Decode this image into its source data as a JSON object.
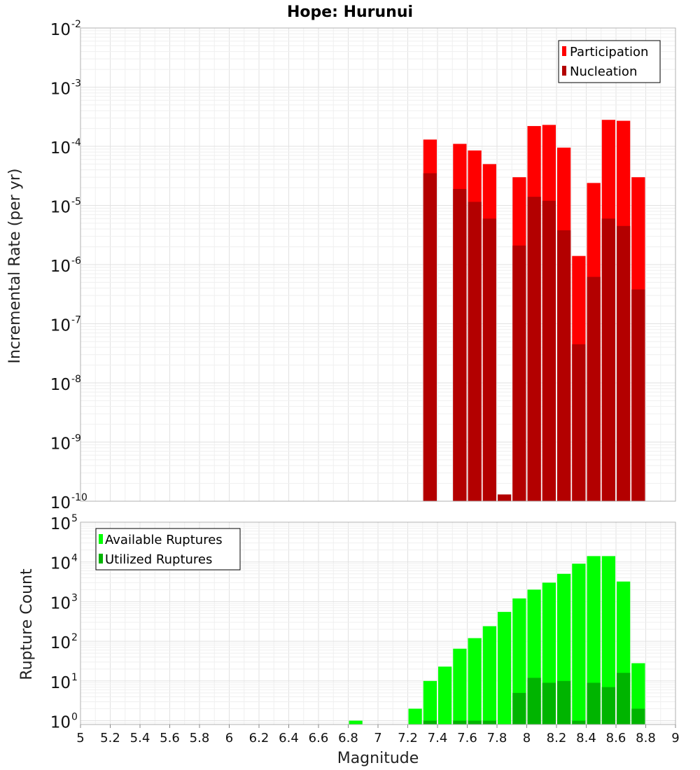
{
  "chart_data": [
    {
      "type": "bar",
      "title": "Hope: Hurunui",
      "xlabel": "",
      "ylabel": "Incremental Rate (per yr)",
      "yscale": "log",
      "ylim": [
        1e-10,
        0.01
      ],
      "xlim": [
        5,
        9
      ],
      "grid": true,
      "legend": "top-right",
      "bar_width": 0.1,
      "y_ticks": [
        {
          "base": "10",
          "exp": "-10",
          "value": 1e-10
        },
        {
          "base": "10",
          "exp": "-9",
          "value": 1e-09
        },
        {
          "base": "10",
          "exp": "-8",
          "value": 1e-08
        },
        {
          "base": "10",
          "exp": "-7",
          "value": 1e-07
        },
        {
          "base": "10",
          "exp": "-6",
          "value": 1e-06
        },
        {
          "base": "10",
          "exp": "-5",
          "value": 1e-05
        },
        {
          "base": "10",
          "exp": "-4",
          "value": 0.0001
        },
        {
          "base": "10",
          "exp": "-3",
          "value": 0.001
        },
        {
          "base": "10",
          "exp": "-2",
          "value": 0.01
        }
      ],
      "series": [
        {
          "name": "Participation",
          "color": "#ff0000",
          "x": [
            7.35,
            7.55,
            7.65,
            7.75,
            7.95,
            8.05,
            8.15,
            8.25,
            8.35,
            8.45,
            8.55,
            8.65,
            8.75
          ],
          "values": [
            0.00013,
            0.00011,
            8.5e-05,
            5e-05,
            3e-05,
            0.00022,
            0.00023,
            9.5e-05,
            1.4e-06,
            2.4e-05,
            0.00028,
            0.00027,
            3e-05
          ]
        },
        {
          "name": "Nucleation",
          "color": "#b30000",
          "x": [
            7.35,
            7.55,
            7.65,
            7.75,
            7.85,
            7.95,
            8.05,
            8.15,
            8.25,
            8.35,
            8.45,
            8.55,
            8.65,
            8.75
          ],
          "values": [
            3.5e-05,
            1.9e-05,
            1.15e-05,
            6e-06,
            1.3e-10,
            2.1e-06,
            1.4e-05,
            1.2e-05,
            3.8e-06,
            4.5e-08,
            6.2e-07,
            6e-06,
            4.5e-06,
            3.8e-07
          ]
        }
      ]
    },
    {
      "type": "bar",
      "title": "",
      "xlabel": "Magnitude",
      "ylabel": "Rupture Count",
      "yscale": "log",
      "ylim": [
        0.8,
        100000
      ],
      "xlim": [
        5,
        9
      ],
      "grid": true,
      "legend": "top-left",
      "bar_width": 0.1,
      "x_ticks": [
        "5",
        "5.2",
        "5.4",
        "5.6",
        "5.8",
        "6",
        "6.2",
        "6.4",
        "6.6",
        "6.8",
        "7",
        "7.2",
        "7.4",
        "7.6",
        "7.8",
        "8",
        "8.2",
        "8.4",
        "8.6",
        "8.8",
        "9"
      ],
      "y_ticks": [
        {
          "base": "10",
          "exp": "0",
          "value": 1
        },
        {
          "base": "10",
          "exp": "1",
          "value": 10
        },
        {
          "base": "10",
          "exp": "2",
          "value": 100
        },
        {
          "base": "10",
          "exp": "3",
          "value": 1000
        },
        {
          "base": "10",
          "exp": "4",
          "value": 10000
        },
        {
          "base": "10",
          "exp": "5",
          "value": 100000
        }
      ],
      "series": [
        {
          "name": "Available Ruptures",
          "color": "#00ff00",
          "x": [
            6.85,
            7.25,
            7.35,
            7.45,
            7.55,
            7.65,
            7.75,
            7.85,
            7.95,
            8.05,
            8.15,
            8.25,
            8.35,
            8.45,
            8.55,
            8.65,
            8.75
          ],
          "values": [
            1,
            2,
            10,
            23,
            65,
            120,
            240,
            550,
            1200,
            2000,
            3000,
            5000,
            9000,
            14000,
            14000,
            3200,
            28
          ]
        },
        {
          "name": "Utilized Ruptures",
          "color": "#00b400",
          "x": [
            7.35,
            7.55,
            7.65,
            7.75,
            7.95,
            8.05,
            8.15,
            8.25,
            8.35,
            8.45,
            8.55,
            8.65,
            8.75
          ],
          "values": [
            1,
            1,
            1,
            1,
            5,
            12,
            9,
            10,
            1,
            9,
            7,
            16,
            2
          ]
        }
      ]
    }
  ]
}
